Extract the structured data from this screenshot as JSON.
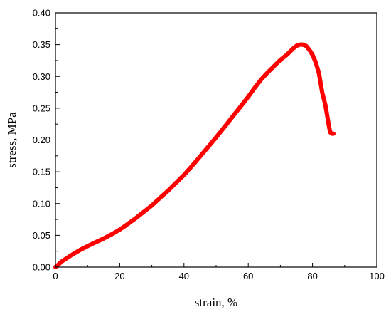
{
  "chart_data": {
    "type": "line",
    "xlabel": "strain, %",
    "ylabel": "stress, MPa",
    "xlim": [
      0,
      100
    ],
    "ylim": [
      0,
      0.4
    ],
    "xticks": [
      "0",
      "20",
      "40",
      "60",
      "80",
      "100"
    ],
    "yticks": [
      "0.00",
      "0.05",
      "0.10",
      "0.15",
      "0.20",
      "0.25",
      "0.30",
      "0.35",
      "0.40"
    ],
    "grid": false,
    "legend": "none",
    "series": [
      {
        "color": "#ff0000",
        "x": [
          0,
          2,
          5,
          8,
          10,
          12,
          15,
          18,
          20,
          22,
          25,
          28,
          30,
          33,
          35,
          38,
          40,
          43,
          45,
          48,
          50,
          53,
          55,
          58,
          60,
          62,
          64,
          66,
          68,
          70,
          72,
          73,
          74,
          75,
          76,
          77,
          78,
          79,
          80,
          81,
          82,
          82.5,
          83,
          84,
          84.5,
          85,
          85.5,
          86,
          86.5
        ],
        "y": [
          0,
          0.009,
          0.019,
          0.028,
          0.033,
          0.038,
          0.045,
          0.053,
          0.059,
          0.066,
          0.077,
          0.089,
          0.097,
          0.111,
          0.12,
          0.135,
          0.145,
          0.162,
          0.174,
          0.192,
          0.204,
          0.223,
          0.236,
          0.255,
          0.268,
          0.282,
          0.295,
          0.306,
          0.316,
          0.326,
          0.334,
          0.339,
          0.344,
          0.348,
          0.35,
          0.35,
          0.348,
          0.342,
          0.334,
          0.322,
          0.305,
          0.29,
          0.275,
          0.255,
          0.24,
          0.225,
          0.212,
          0.21,
          0.21
        ]
      }
    ]
  }
}
